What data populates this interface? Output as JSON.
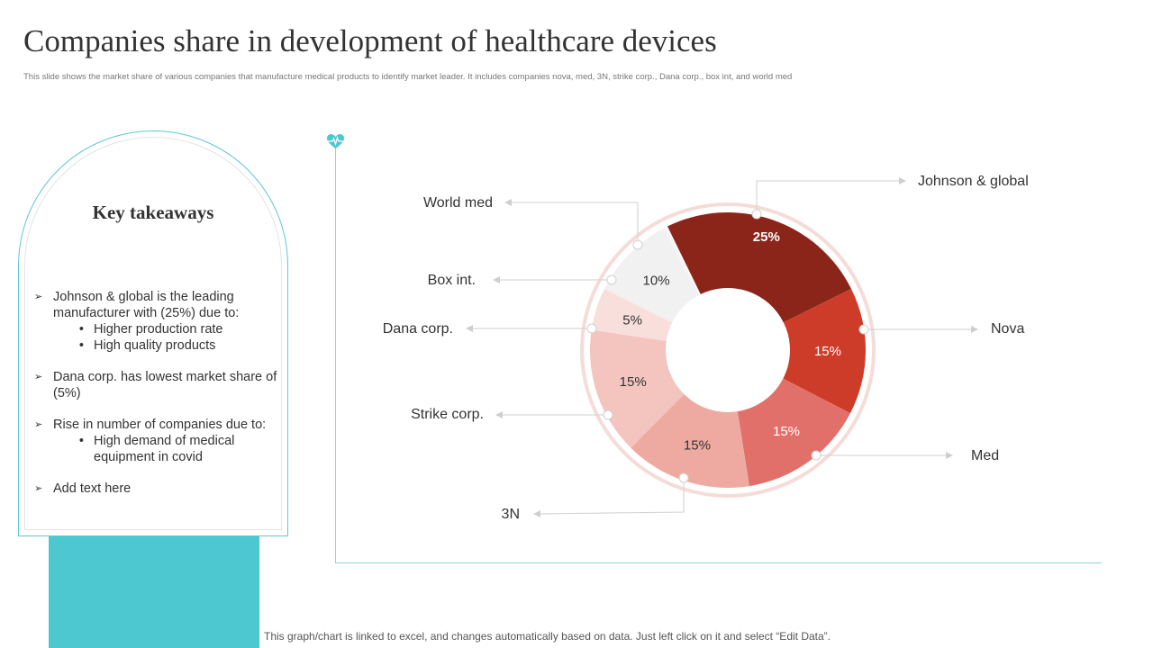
{
  "title": "Companies share in development of healthcare devices",
  "subtitle": "This slide shows the market share of various companies that manufacture medical products to identify market leader. It includes companies nova, med, 3N, strike corp., Dana corp., box int, and world med",
  "takeaways": {
    "title": "Key takeaways",
    "items": [
      {
        "text": "Johnson & global is the leading manufacturer with (25%) due to:",
        "sub": [
          "Higher production rate",
          "High quality products"
        ]
      },
      {
        "text": "Dana corp. has  lowest market share of (5%)",
        "sub": []
      },
      {
        "text": "Rise in number of companies due to:",
        "sub": [
          "High demand of medical equipment in covid"
        ]
      },
      {
        "text": "Add text here",
        "sub": []
      }
    ]
  },
  "chart_data": {
    "type": "pie",
    "variant": "donut",
    "unit": "%",
    "slices": [
      {
        "name": "Johnson & global",
        "value": 25,
        "label": "25%",
        "color": "#8c2519"
      },
      {
        "name": "Nova",
        "value": 15,
        "label": "15%",
        "color": "#cd3c28"
      },
      {
        "name": "Med",
        "value": 15,
        "label": "15%",
        "color": "#e2706a"
      },
      {
        "name": "3N",
        "value": 15,
        "label": "15%",
        "color": "#eeaaa1"
      },
      {
        "name": "Strike corp.",
        "value": 15,
        "label": "15%",
        "color": "#f4c4bf"
      },
      {
        "name": "Dana corp.",
        "value": 5,
        "label": "5%",
        "color": "#f8dfdc"
      },
      {
        "name": "Box int.",
        "value": 10,
        "label": "10%",
        "color": "#f1f1f1"
      }
    ],
    "gap_slice": {
      "value": 0.5,
      "color": "#f6f6f6"
    }
  },
  "colors": {
    "accent": "#4dc8d0",
    "ring": "#f4dcd8",
    "leader": "#cfcfcf"
  },
  "footer": "This graph/chart is linked to excel, and changes automatically based on data. Just left click on it and select “Edit Data”."
}
